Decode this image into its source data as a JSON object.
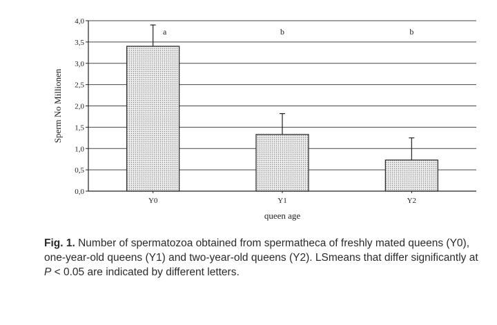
{
  "chart_data": {
    "type": "bar",
    "categories": [
      "Y0",
      "Y1",
      "Y2"
    ],
    "values": [
      3.4,
      1.33,
      0.73
    ],
    "error_upper": [
      3.9,
      1.82,
      1.25
    ],
    "significance_letters": [
      "a",
      "b",
      "b"
    ],
    "xlabel": "queen age",
    "ylabel": "Sperm No Millionen",
    "ylim": [
      0,
      4
    ],
    "yticks": [
      "0,0",
      "0,5",
      "1,0",
      "1,5",
      "2,0",
      "2,5",
      "3,0",
      "3,5",
      "4,0"
    ],
    "grid": "horizontal",
    "bar_fill": "dotted-light-gray"
  },
  "caption": {
    "label": "Fig. 1.",
    "text_part1": " Number of spermatozoa obtained from spermatheca of freshly mated queens (Y0), one-year-old queens (Y1) and two-year-old queens (Y2). LSmeans that differ significantly at ",
    "p_symbol": "P",
    "text_part2": " < 0.05 are indicated by different letters."
  },
  "colors": {
    "axis": "#222222",
    "grid": "#444444",
    "bar_border": "#222222",
    "bar_background": "#ececec",
    "bar_dots": "#8a8a8a"
  }
}
